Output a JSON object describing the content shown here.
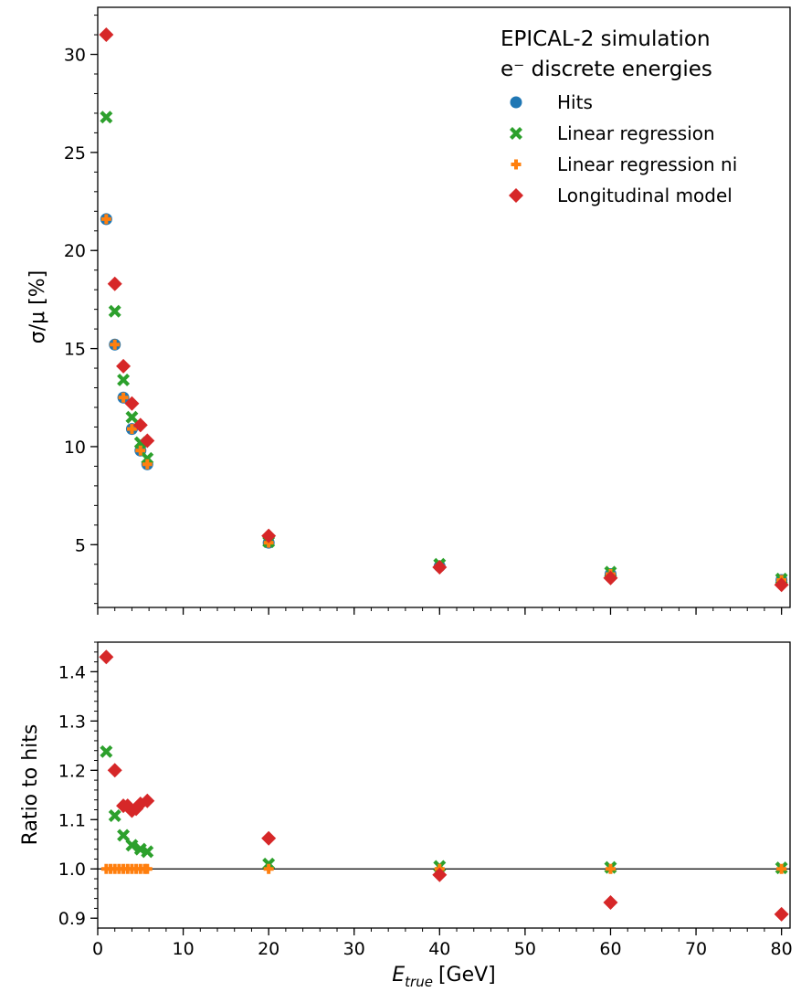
{
  "chart_data": [
    {
      "type": "scatter",
      "ylabel": "σ/μ [%]",
      "xlim": [
        0,
        81
      ],
      "ylim": [
        1.8,
        32.4
      ],
      "yticks": [
        5,
        10,
        15,
        20,
        25,
        30
      ],
      "legend": {
        "placement": "top-right",
        "title_lines": [
          "EPICAL-2 simulation",
          "e⁻ discrete energies"
        ]
      },
      "series": [
        {
          "name": "Hits",
          "color": "#1f77b4",
          "marker": "circle",
          "x": [
            1,
            2,
            3,
            4,
            5,
            5.8,
            20,
            40,
            60,
            80
          ],
          "y": [
            21.6,
            15.2,
            12.5,
            10.9,
            9.8,
            9.1,
            5.1,
            3.9,
            3.5,
            3.2
          ]
        },
        {
          "name": "Linear regression",
          "color": "#2ca02c",
          "marker": "x",
          "x": [
            1,
            2,
            3,
            4,
            5,
            5.8,
            20,
            40,
            60,
            80
          ],
          "y": [
            26.8,
            16.9,
            13.4,
            11.5,
            10.2,
            9.4,
            5.15,
            4.0,
            3.6,
            3.25
          ]
        },
        {
          "name": "Linear regression ni",
          "color": "#ff7f0e",
          "marker": "plus",
          "x": [
            1,
            2,
            3,
            4,
            5,
            5.8,
            20,
            40,
            60,
            80
          ],
          "y": [
            21.6,
            15.2,
            12.5,
            10.9,
            9.8,
            9.1,
            5.1,
            3.9,
            3.5,
            3.2
          ]
        },
        {
          "name": "Longitudinal model",
          "color": "#d62728",
          "marker": "diamond",
          "x": [
            1,
            2,
            3,
            4,
            5,
            5.8,
            20,
            40,
            60,
            80
          ],
          "y": [
            31.0,
            18.3,
            14.1,
            12.2,
            11.1,
            10.3,
            5.45,
            3.85,
            3.3,
            2.95
          ]
        }
      ]
    },
    {
      "type": "scatter",
      "xlabel_main": "E",
      "xlabel_sub": "true",
      "xlabel_unit": "[GeV]",
      "ylabel": "Ratio to hits",
      "xlim": [
        0,
        81
      ],
      "ylim": [
        0.88,
        1.46
      ],
      "xticks": [
        0,
        10,
        20,
        30,
        40,
        50,
        60,
        70,
        80
      ],
      "yticks": [
        0.9,
        1.0,
        1.1,
        1.2,
        1.3,
        1.4
      ],
      "reference_line": 1.0,
      "series": [
        {
          "name": "Linear regression",
          "color": "#2ca02c",
          "marker": "x",
          "x": [
            1,
            2,
            3,
            4,
            5,
            5.8,
            20,
            40,
            60,
            80
          ],
          "y": [
            1.238,
            1.108,
            1.068,
            1.048,
            1.04,
            1.035,
            1.01,
            1.005,
            1.003,
            1.002
          ]
        },
        {
          "name": "Linear regression ni",
          "color": "#ff7f0e",
          "marker": "plus",
          "x": [
            1,
            1.5,
            2,
            2.5,
            3,
            3.5,
            4,
            4.5,
            5,
            5.5,
            5.8,
            20,
            40,
            60,
            80
          ],
          "y": [
            1.0,
            1.0,
            1.0,
            1.0,
            1.0,
            1.0,
            1.0,
            1.0,
            1.0,
            1.0,
            1.0,
            1.0,
            1.0,
            1.0,
            1.0
          ]
        },
        {
          "name": "Longitudinal model",
          "color": "#d62728",
          "marker": "diamond",
          "x": [
            1,
            2,
            3,
            3.5,
            4,
            4.5,
            5,
            5.8,
            20,
            40,
            60,
            80
          ],
          "y": [
            1.43,
            1.2,
            1.128,
            1.128,
            1.118,
            1.122,
            1.132,
            1.138,
            1.062,
            0.988,
            0.932,
            0.908
          ]
        }
      ]
    }
  ]
}
